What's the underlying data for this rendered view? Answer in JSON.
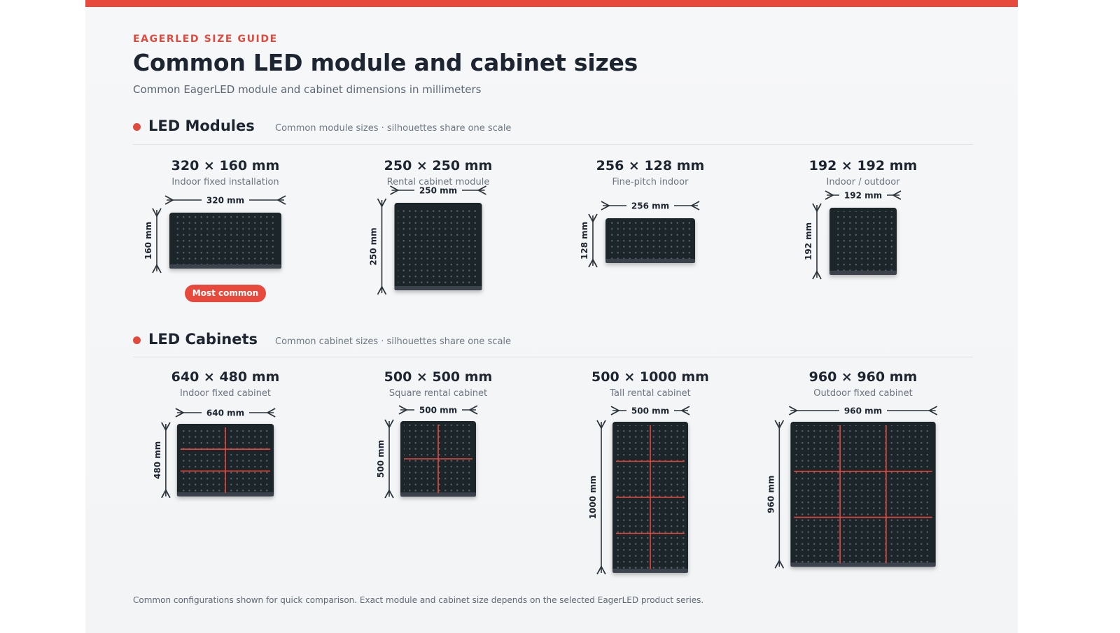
{
  "header": {
    "kicker": "EAGERLED SIZE GUIDE",
    "title": "Common LED module and cabinet sizes",
    "subtitle": "Common EagerLED module and cabinet dimensions in millimeters"
  },
  "colors": {
    "accent": "#e8493d",
    "panel": "#1f252b",
    "text": "#1c2530"
  },
  "modules": {
    "title": "LED Modules",
    "note": "Common module sizes · silhouettes share one scale",
    "items": [
      {
        "title": "320 × 160 mm",
        "sub": "Indoor fixed installation",
        "w_label": "320 mm",
        "h_label": "160 mm",
        "w": 320,
        "h": 160,
        "badge": "Most common"
      },
      {
        "title": "250 × 250 mm",
        "sub": "Rental cabinet module",
        "w_label": "250 mm",
        "h_label": "250 mm",
        "w": 250,
        "h": 250
      },
      {
        "title": "256 × 128 mm",
        "sub": "Fine-pitch indoor",
        "w_label": "256 mm",
        "h_label": "128 mm",
        "w": 256,
        "h": 128
      },
      {
        "title": "192 × 192 mm",
        "sub": "Indoor / outdoor",
        "w_label": "192 mm",
        "h_label": "192 mm",
        "w": 192,
        "h": 192
      }
    ]
  },
  "cabinets": {
    "title": "LED Cabinets",
    "note": "Common cabinet sizes · silhouettes share one scale",
    "items": [
      {
        "title": "640 × 480 mm",
        "sub": "Indoor fixed cabinet",
        "w_label": "640 mm",
        "h_label": "480 mm",
        "w": 640,
        "h": 480,
        "cols": 2,
        "rows": 3
      },
      {
        "title": "500 × 500 mm",
        "sub": "Square rental cabinet",
        "w_label": "500 mm",
        "h_label": "500 mm",
        "w": 500,
        "h": 500,
        "cols": 2,
        "rows": 2
      },
      {
        "title": "500 × 1000 mm",
        "sub": "Tall rental cabinet",
        "w_label": "500 mm",
        "h_label": "1000 mm",
        "w": 500,
        "h": 1000,
        "cols": 2,
        "rows": 4
      },
      {
        "title": "960 × 960 mm",
        "sub": "Outdoor fixed cabinet",
        "w_label": "960 mm",
        "h_label": "960 mm",
        "w": 960,
        "h": 960,
        "cols": 3,
        "rows": 3
      }
    ]
  },
  "footer": "Common configurations shown for quick comparison. Exact module and cabinet size depends on the selected EagerLED product series."
}
